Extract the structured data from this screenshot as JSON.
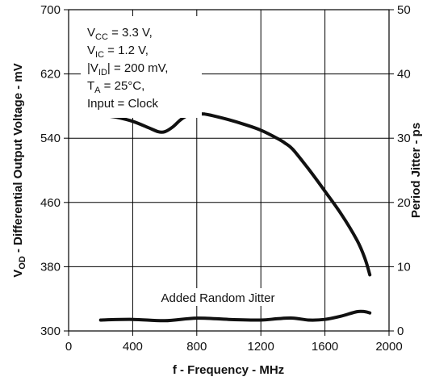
{
  "chart_data": {
    "type": "line",
    "x_axis": {
      "label": "f - Frequency - MHz",
      "range": [
        0,
        2000
      ],
      "ticks": [
        0,
        400,
        800,
        1200,
        1600,
        2000
      ]
    },
    "y_axis_left": {
      "label_base": "V",
      "label_sub": "OD",
      "label_rest": " - Differential Output Voltage - mV",
      "range": [
        300,
        700
      ],
      "ticks": [
        300,
        380,
        460,
        540,
        620,
        700
      ]
    },
    "y_axis_right": {
      "label": "Period Jitter - ps",
      "range": [
        0,
        50
      ],
      "ticks": [
        0,
        10,
        20,
        30,
        40,
        50
      ]
    },
    "grid": true,
    "conditions": {
      "vcc": {
        "base": "V",
        "sub": "CC",
        "rest": " = 3.3 V,"
      },
      "vic": {
        "base": "V",
        "sub": "IC",
        "rest": " = 1.2 V,"
      },
      "vid": {
        "pre": "|V",
        "sub": "ID",
        "rest": "| = 200 mV,"
      },
      "ta": {
        "base": "T",
        "sub": "A",
        "rest": " = 25°C,"
      },
      "input": "Input = Clock"
    },
    "series": [
      {
        "axis": "left",
        "x": [
          200,
          300,
          400,
          500,
          560,
          600,
          650,
          700,
          750,
          800,
          850,
          900,
          1000,
          1100,
          1200,
          1300,
          1350,
          1400,
          1500,
          1600,
          1700,
          1800,
          1850,
          1880
        ],
        "y": [
          569,
          566,
          561,
          553,
          548,
          548,
          554,
          563,
          569,
          570,
          570,
          568,
          563,
          557,
          550,
          540,
          534,
          526,
          501,
          474,
          446,
          413,
          390,
          370
        ]
      },
      {
        "axis": "right",
        "annotation": "Added Random Jitter",
        "x": [
          200,
          400,
          600,
          800,
          1000,
          1200,
          1300,
          1400,
          1500,
          1600,
          1700,
          1800,
          1850,
          1880
        ],
        "y": [
          1.7,
          1.8,
          1.6,
          2.0,
          1.8,
          1.7,
          1.9,
          2.0,
          1.7,
          1.8,
          2.3,
          3.0,
          3.0,
          2.8
        ]
      }
    ]
  }
}
